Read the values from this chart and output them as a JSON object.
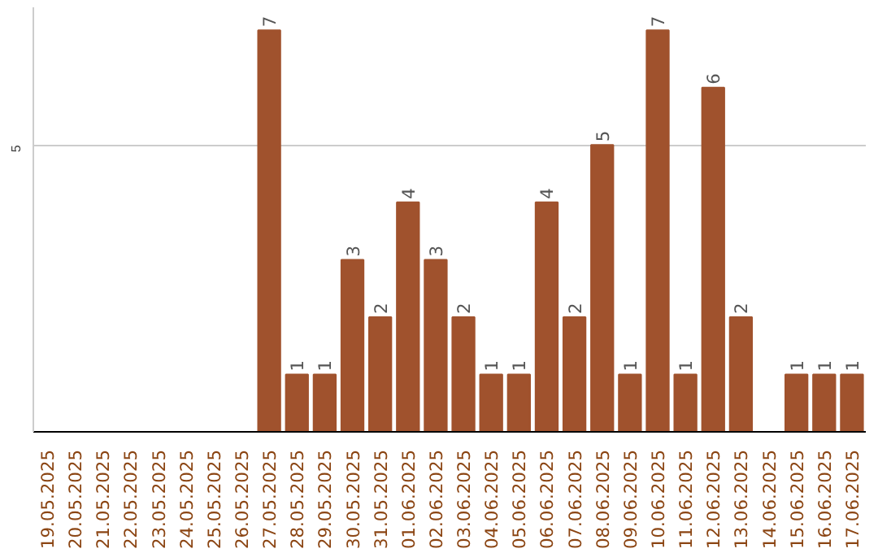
{
  "chart_data": {
    "type": "bar",
    "categories": [
      "19.05.2025",
      "20.05.2025",
      "21.05.2025",
      "22.05.2025",
      "23.05.2025",
      "24.05.2025",
      "25.05.2025",
      "26.05.2025",
      "27.05.2025",
      "28.05.2025",
      "29.05.2025",
      "30.05.2025",
      "31.05.2025",
      "01.06.2025",
      "02.06.2025",
      "03.06.2025",
      "04.06.2025",
      "05.06.2025",
      "06.06.2025",
      "07.06.2025",
      "08.06.2025",
      "09.06.2025",
      "10.06.2025",
      "11.06.2025",
      "12.06.2025",
      "13.06.2025",
      "14.06.2025",
      "15.06.2025",
      "16.06.2025",
      "17.06.2025"
    ],
    "values": [
      0,
      0,
      0,
      0,
      0,
      0,
      0,
      0,
      7,
      1,
      1,
      3,
      2,
      4,
      3,
      2,
      1,
      1,
      4,
      2,
      5,
      1,
      7,
      1,
      6,
      2,
      0,
      1,
      1,
      1
    ],
    "value_labels": [
      null,
      null,
      null,
      null,
      null,
      null,
      null,
      null,
      "7",
      "1",
      "1",
      "3",
      "2",
      "4",
      "3",
      "2",
      "1",
      "1",
      "4",
      "2",
      "5",
      "1",
      "7",
      "1",
      "6",
      "2",
      null,
      "1",
      "1",
      "1"
    ],
    "color": "#a0522d",
    "ylim": [
      0,
      7.4
    ],
    "yticks": [
      5
    ],
    "grid": "y"
  }
}
